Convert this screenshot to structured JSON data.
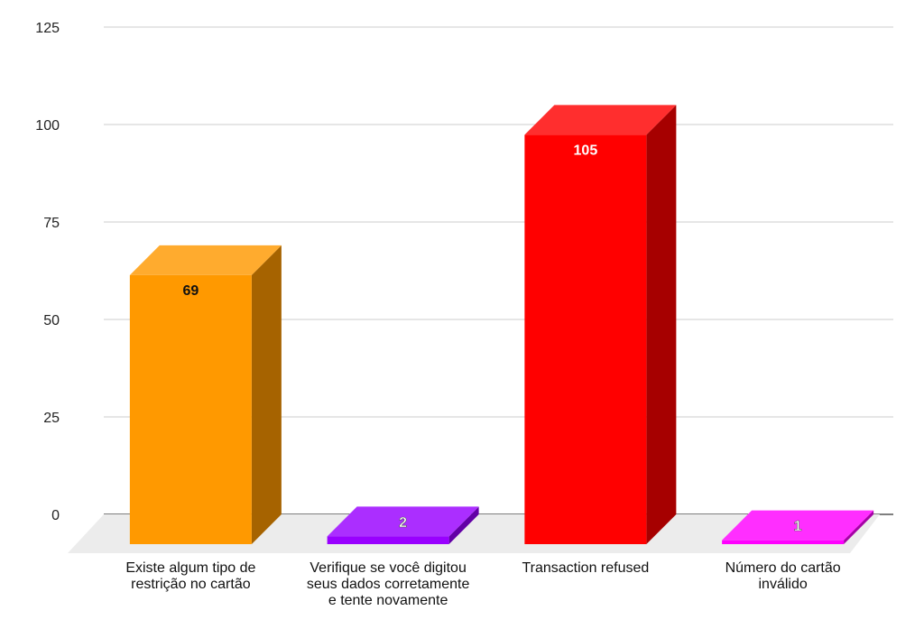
{
  "chart_data": {
    "type": "bar",
    "style": "3d",
    "categories": [
      [
        "Existe algum tipo de",
        "restrição no cartão"
      ],
      [
        "Verifique se você digitou",
        "seus dados corretamente",
        "e tente novamente"
      ],
      [
        "Transaction refused"
      ],
      [
        "Número do cartão",
        "inválido"
      ]
    ],
    "values": [
      69,
      2,
      105,
      1
    ],
    "value_labels": [
      "69",
      "2",
      "105",
      "1"
    ],
    "colors": [
      "#ff9900",
      "#9900ff",
      "#ff0000",
      "#ff00ff"
    ],
    "label_colors": [
      "#111111",
      "#ffffff",
      "#ffffff",
      "#ffffff"
    ],
    "ylim": [
      0,
      125
    ],
    "yticks": [
      0,
      25,
      50,
      75,
      100,
      125
    ],
    "grid": true,
    "title": "",
    "xlabel": "",
    "ylabel": ""
  }
}
